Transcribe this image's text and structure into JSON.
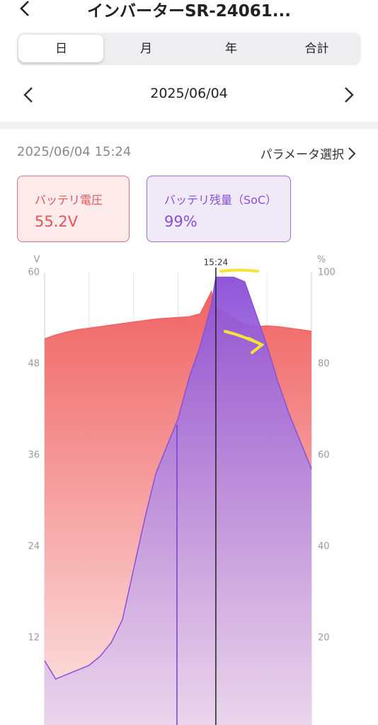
{
  "header": {
    "title": "インバーターSR-24061..."
  },
  "tabs": [
    "日",
    "月",
    "年",
    "合計"
  ],
  "date_nav": {
    "date": "2025/06/04"
  },
  "timestamp": "2025/06/04 15:24",
  "parameter_button": "パラメータ選択",
  "cards": [
    {
      "label": "バッテリ電圧",
      "value": "55.2V"
    },
    {
      "label": "バッテリ残量（SoC）",
      "value": "99%"
    }
  ],
  "chart_data": {
    "type": "area",
    "y_unit": "V",
    "y2_unit": "%",
    "x": [
      0,
      1,
      2,
      3,
      4,
      5,
      6,
      7,
      8,
      9,
      10,
      11,
      12,
      13,
      14,
      15,
      15.4,
      16,
      17,
      18,
      19,
      20,
      21,
      22,
      23,
      24
    ],
    "xlim": [
      0,
      24
    ],
    "xticks": [
      0,
      4,
      8,
      12,
      16,
      20,
      24
    ],
    "ylim": [
      0,
      60
    ],
    "yticks": [
      12,
      24,
      36,
      48,
      60
    ],
    "y2lim": [
      0,
      100
    ],
    "y2ticks": [
      20,
      40,
      60,
      80,
      100
    ],
    "cursor": {
      "value": 15.4,
      "label": "15:24"
    },
    "series": [
      {
        "color": "#f06464",
        "values": [
          51.3,
          51.8,
          52.2,
          52.5,
          52.7,
          52.9,
          53.1,
          53.3,
          53.5,
          53.7,
          53.9,
          54.0,
          54.1,
          54.2,
          54.6,
          57.5,
          55.2,
          55.0,
          54.0,
          53.2,
          52.9,
          53.0,
          52.9,
          52.7,
          52.5,
          52.3
        ]
      },
      {
        "color": "#8a4fd8",
        "axis": "y2",
        "values": [
          15,
          11,
          12,
          13,
          14,
          16,
          19,
          24,
          35,
          46,
          56,
          62,
          68,
          77,
          84,
          93,
          99,
          99,
          99,
          98,
          91,
          84,
          76,
          69,
          63,
          57
        ]
      }
    ]
  }
}
